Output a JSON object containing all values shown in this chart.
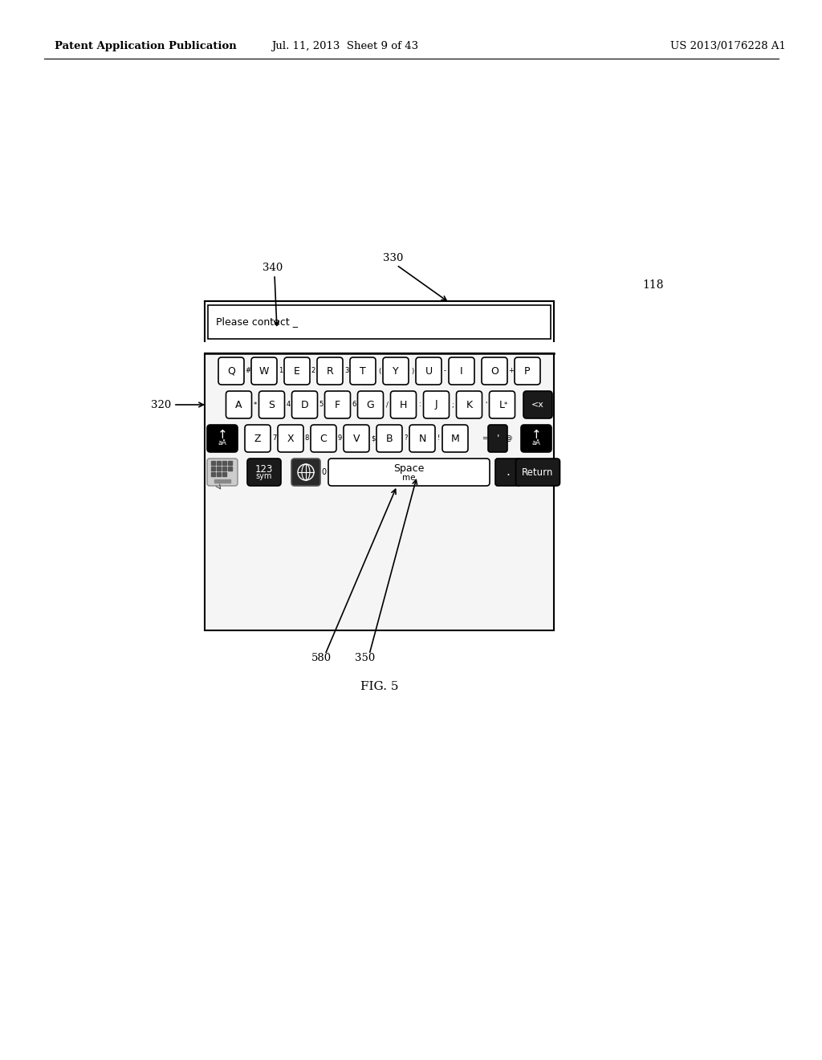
{
  "title_left": "Patent Application Publication",
  "title_center": "Jul. 11, 2013  Sheet 9 of 43",
  "title_right": "US 2013/0176228 A1",
  "fig_label": "FIG. 5",
  "ref_118": "118",
  "ref_320": "320",
  "ref_330": "330",
  "ref_340": "340",
  "ref_350": "350",
  "ref_580": "580",
  "text_field_text": "Please contact _",
  "space_label": "Space",
  "space_sublabel": "me",
  "row1_keys": [
    "Q",
    "W",
    "E",
    "R",
    "T",
    "Y",
    "U",
    "I",
    "O",
    "P"
  ],
  "row1_subs": [
    "#",
    "1",
    "2",
    "3",
    "(",
    ")",
    "-",
    "",
    "+",
    ""
  ],
  "row2_keys": [
    "A",
    "S",
    "D",
    "F",
    "G",
    "H",
    "J",
    "K",
    "L"
  ],
  "row2_subs": [
    "*",
    "4",
    "5",
    "6",
    "/",
    ":",
    ";",
    "'",
    "*"
  ],
  "row3_keys": [
    "Z",
    "X",
    "C",
    "V",
    "B",
    "N",
    "M"
  ],
  "row3_subs": [
    "7",
    "8",
    "9",
    "$",
    "?",
    "!",
    "="
  ]
}
